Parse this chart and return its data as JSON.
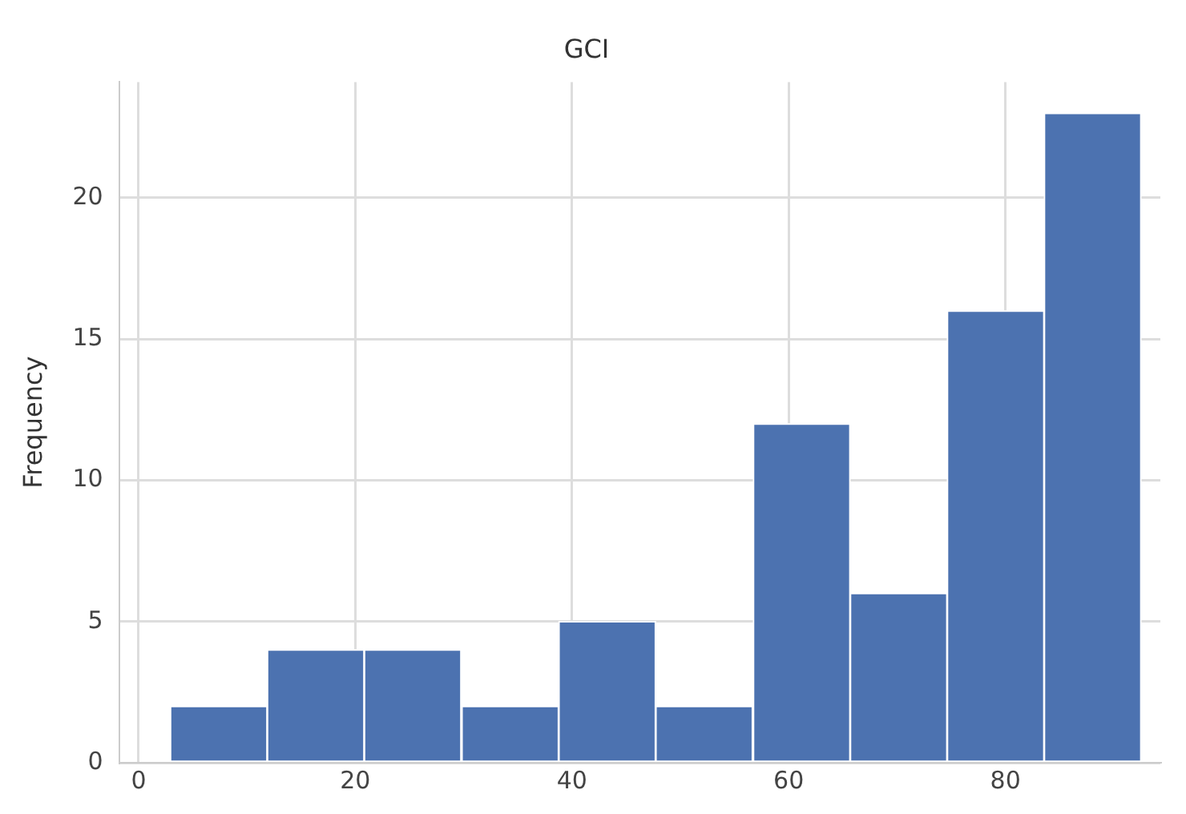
{
  "chart_data": {
    "type": "histogram",
    "title": "GCI",
    "ylabel": "Frequency",
    "bins": [
      2.9,
      11.9,
      20.8,
      29.8,
      38.8,
      47.7,
      56.7,
      65.7,
      74.6,
      83.6,
      92.5
    ],
    "values": [
      2,
      4,
      4,
      2,
      5,
      2,
      12,
      6,
      16,
      23
    ],
    "color": "#4c72b0",
    "xlim": [
      -1.8,
      94.3
    ],
    "xticks": [
      0,
      20,
      40,
      60,
      80
    ],
    "ylim": [
      0,
      24.1
    ],
    "yticks": [
      0,
      5,
      10,
      15,
      20
    ],
    "grid": true
  }
}
